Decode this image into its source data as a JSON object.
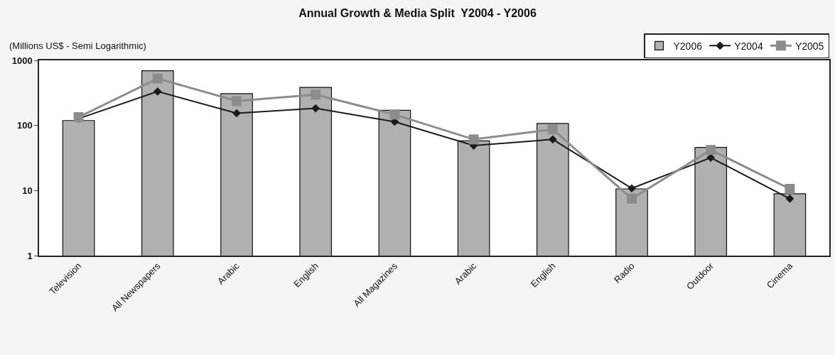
{
  "chart_data": {
    "type": "bar",
    "title": "Annual Growth & Media Split  Y2004 - Y2006",
    "subtitle": "(Millions US$ - Semi Logarithmic)",
    "categories": [
      "Television",
      "All Newspapers",
      "Arabic",
      "English",
      "All Magazines",
      "Arabic",
      "English",
      "Radio",
      "Outdoor",
      "Cinema"
    ],
    "series": [
      {
        "name": "Y2006",
        "color": "#b0b0b0",
        "values": [
          119,
          694,
          308,
          384,
          171,
          58,
          107,
          10.6,
          46,
          8.9
        ]
      },
      {
        "name": "Y2004",
        "type": "line",
        "color": "#1a1a1a",
        "marker": "diamond",
        "values": [
          127,
          332,
          154,
          183,
          114,
          49,
          61,
          10.8,
          32,
          7.5
        ]
      },
      {
        "name": "Y2005",
        "type": "line",
        "color": "#8c8c8c",
        "marker": "square",
        "values": [
          134,
          526,
          237,
          297,
          147,
          61,
          87,
          7.5,
          42,
          10.6
        ]
      }
    ],
    "log": "y",
    "ylim": [
      1,
      1000
    ],
    "yticks": [
      1,
      10,
      100,
      1000
    ],
    "grid": false,
    "legend": "top right"
  }
}
